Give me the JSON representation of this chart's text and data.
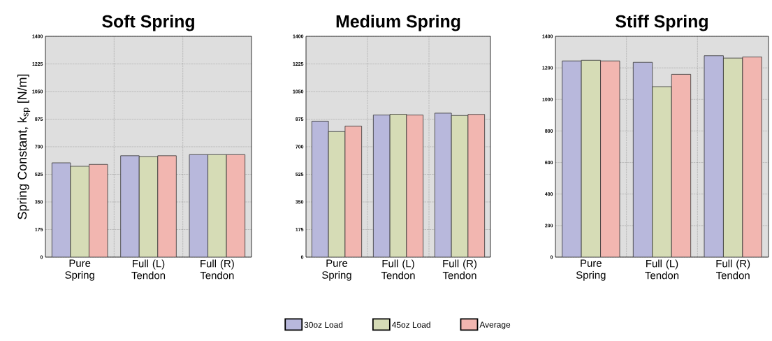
{
  "chart_data": [
    {
      "type": "bar",
      "title": "Soft Spring",
      "ylabel": "Spring Constant, k$_{sp}$ [N/m]",
      "categories": [
        "Pure Spring",
        "Full (L) Tendon",
        "Full (R) Tendon"
      ],
      "series": [
        {
          "color": "#b8b8dc",
          "values": [
            598,
            643,
            650
          ]
        },
        {
          "color": "#d6dcb6",
          "values": [
            576,
            638,
            650
          ]
        },
        {
          "color": "#f2b6b0",
          "values": [
            588,
            643,
            650
          ]
        }
      ],
      "ylim": [
        0,
        1400
      ],
      "yticks": [
        0,
        175,
        350,
        525,
        700,
        875,
        1050,
        1225,
        1400
      ],
      "grid": true
    },
    {
      "type": "bar",
      "title": "Medium Spring",
      "categories": [
        "Pure Spring",
        "Full (L) Tendon",
        "Full (R) Tendon"
      ],
      "series": [
        {
          "name": "30oz Load",
          "color": "#b8b8dc",
          "values": [
            862,
            901,
            913
          ]
        },
        {
          "name": "45oz Load",
          "color": "#d6dcb6",
          "values": [
            796,
            906,
            898
          ]
        },
        {
          "name": "Average",
          "color": "#f2b6b0",
          "values": [
            831,
            901,
            905
          ]
        }
      ],
      "ylim": [
        0,
        1400
      ],
      "yticks": [
        0,
        175,
        350,
        525,
        700,
        875,
        1050,
        1225,
        1400
      ],
      "grid": true,
      "legend": "bottom"
    },
    {
      "type": "bar",
      "title": "Stiff Spring",
      "categories": [
        "Pure Spring",
        "Full (L) Tendon",
        "Full (R) Tendon"
      ],
      "series": [
        {
          "color": "#b8b8dc",
          "values": [
            1244,
            1235,
            1277
          ]
        },
        {
          "color": "#d6dcb6",
          "values": [
            1248,
            1081,
            1262
          ]
        },
        {
          "color": "#f2b6b0",
          "values": [
            1244,
            1159,
            1269
          ]
        }
      ],
      "ylim": [
        0,
        1400
      ],
      "yticks": [
        0,
        200,
        400,
        600,
        800,
        1000,
        1200,
        1400
      ],
      "grid": true
    }
  ]
}
